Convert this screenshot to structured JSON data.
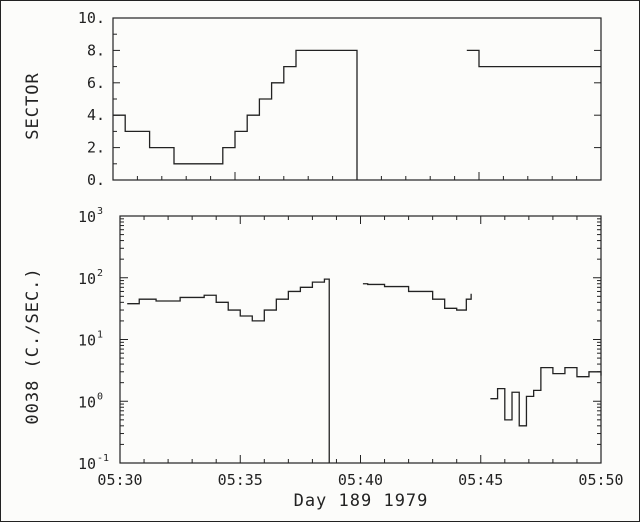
{
  "chart_data": [
    {
      "type": "line",
      "step": true,
      "ylabel": "SECTOR",
      "ylim": [
        0,
        10
      ],
      "yticks": [
        "0.",
        "2.",
        "4.",
        "6.",
        "8.",
        "10."
      ],
      "xlim": [
        "05:30",
        "05:50"
      ],
      "grid": false,
      "series": [
        {
          "segments": [
            {
              "x": [
                "05:30",
                "05:30.5",
                "05:31.5",
                "05:32.5",
                "05:34.5",
                "05:35.0",
                "05:35.5",
                "05:36.0",
                "05:36.5",
                "05:37.0",
                "05:37.5",
                "05:38.0",
                "05:39.0",
                "05:40.0"
              ],
              "y": [
                4,
                3,
                2,
                1,
                2,
                3,
                4,
                5,
                6,
                7,
                8,
                8,
                8,
                0
              ]
            },
            {
              "x": [
                "05:44.5",
                "05:45.0",
                "05:50"
              ],
              "y": [
                8,
                7,
                7
              ]
            }
          ]
        }
      ]
    },
    {
      "type": "line",
      "step": true,
      "ylabel": "0038 (C./SEC.)",
      "xlabel": "Day 189 1979",
      "yscale": "log",
      "ylim": [
        0.1,
        1000
      ],
      "ytick_base": "10",
      "ytick_exponents": [
        "-1",
        "0",
        "1",
        "2",
        "3"
      ],
      "xlim": [
        "05:30",
        "05:50"
      ],
      "xticks": [
        "05:30",
        "05:35",
        "05:40",
        "05:45",
        "05:50"
      ],
      "grid": false,
      "series": [
        {
          "segments": [
            {
              "x": [
                "05:30.3",
                "05:30.8",
                "05:31.5",
                "05:32.5",
                "05:33.5",
                "05:34.0",
                "05:34.5",
                "05:35.0",
                "05:35.5",
                "05:36.0",
                "05:36.5",
                "05:37.0",
                "05:37.5",
                "05:38.0",
                "05:38.5",
                "05:38.7"
              ],
              "y": [
                38,
                45,
                42,
                48,
                52,
                40,
                30,
                24,
                20,
                30,
                45,
                60,
                70,
                85,
                95,
                0.1
              ]
            },
            {
              "x": [
                "05:40.1",
                "05:40.3",
                "05:41.0",
                "05:42.0",
                "05:43.0",
                "05:43.5",
                "05:44.0",
                "05:44.4",
                "05:44.6"
              ],
              "y": [
                80,
                78,
                72,
                60,
                45,
                32,
                30,
                45,
                55
              ]
            },
            {
              "x": [
                "05:45.4",
                "05:45.7",
                "05:46.0",
                "05:46.3",
                "05:46.6",
                "05:46.9",
                "05:47.2",
                "05:47.5",
                "05:48.0",
                "05:48.5",
                "05:49.0",
                "05:49.5",
                "05:50"
              ],
              "y": [
                1.1,
                1.6,
                0.5,
                1.4,
                0.4,
                1.2,
                1.5,
                3.5,
                2.8,
                3.5,
                2.5,
                3.0,
                2.6
              ]
            }
          ]
        }
      ]
    }
  ]
}
